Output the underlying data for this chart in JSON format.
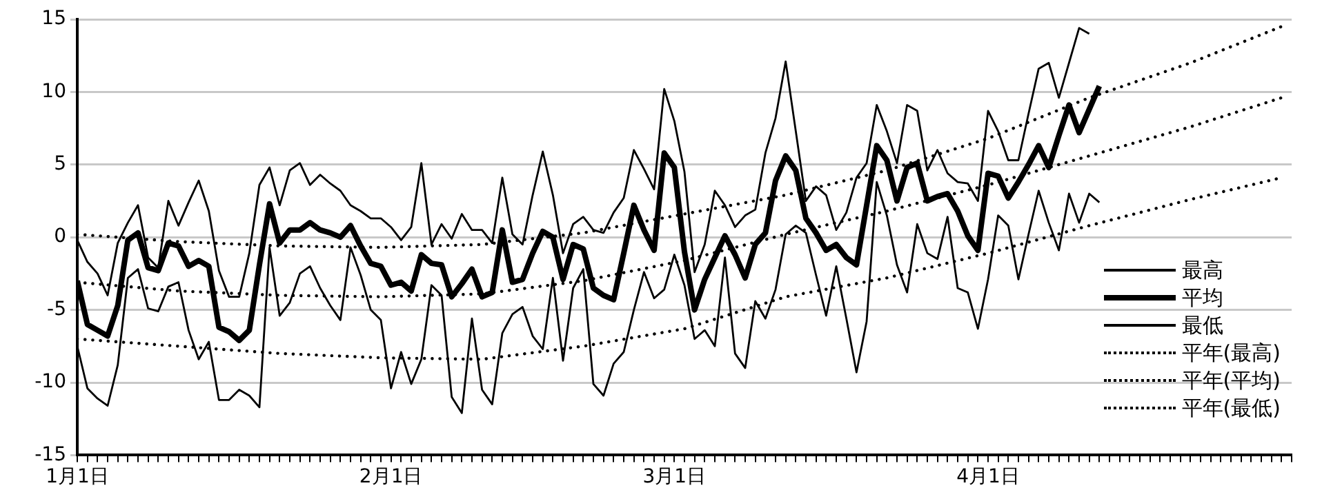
{
  "chart_data": {
    "type": "line",
    "x": [
      "--01-01",
      "--01-02",
      "--01-03",
      "--01-04",
      "--01-05",
      "--01-06",
      "--01-07",
      "--01-08",
      "--01-09",
      "--01-10",
      "--01-11",
      "--01-12",
      "--01-13",
      "--01-14",
      "--01-15",
      "--01-16",
      "--01-17",
      "--01-18",
      "--01-19",
      "--01-20",
      "--01-21",
      "--01-22",
      "--01-23",
      "--01-24",
      "--01-25",
      "--01-26",
      "--01-27",
      "--01-28",
      "--01-29",
      "--01-30",
      "--01-31",
      "--02-01",
      "--02-02",
      "--02-03",
      "--02-04",
      "--02-05",
      "--02-06",
      "--02-07",
      "--02-08",
      "--02-09",
      "--02-10",
      "--02-11",
      "--02-12",
      "--02-13",
      "--02-14",
      "--02-15",
      "--02-16",
      "--02-17",
      "--02-18",
      "--02-19",
      "--02-20",
      "--02-21",
      "--02-22",
      "--02-23",
      "--02-24",
      "--02-25",
      "--02-26",
      "--02-27",
      "--02-28",
      "--03-01",
      "--03-02",
      "--03-03",
      "--03-04",
      "--03-05",
      "--03-06",
      "--03-07",
      "--03-08",
      "--03-09",
      "--03-10",
      "--03-11",
      "--03-12",
      "--03-13",
      "--03-14",
      "--03-15",
      "--03-16",
      "--03-17",
      "--03-18",
      "--03-19",
      "--03-20",
      "--03-21",
      "--03-22",
      "--03-23",
      "--03-24",
      "--03-25",
      "--03-26",
      "--03-27",
      "--03-28",
      "--03-29",
      "--03-30",
      "--03-31",
      "--04-01",
      "--04-02",
      "--04-03",
      "--04-04",
      "--04-05",
      "--04-06",
      "--04-07",
      "--04-08",
      "--04-09",
      "--04-10",
      "--04-11",
      "--04-12"
    ],
    "series": [
      {
        "name": "最高",
        "color": "#000000",
        "line_style": "solid",
        "values": [
          -0.2,
          -1.7,
          -2.5,
          -4.0,
          -0.4,
          1.0,
          2.2,
          -1.4,
          -2.1,
          2.5,
          0.8,
          2.4,
          3.9,
          1.8,
          -2.3,
          -4.1,
          -4.1,
          -1.1,
          3.6,
          4.8,
          2.2,
          4.6,
          5.1,
          3.6,
          4.3,
          3.7,
          3.2,
          2.2,
          1.8,
          1.3,
          1.3,
          0.7,
          -0.2,
          0.7,
          5.1,
          -0.5,
          0.9,
          -0.1,
          1.6,
          0.5,
          0.5,
          -0.4,
          4.1,
          0.2,
          -0.5,
          2.9,
          5.9,
          2.9,
          -1.1,
          0.9,
          1.4,
          0.5,
          0.3,
          1.7,
          2.7,
          6.0,
          4.7,
          3.3,
          10.2,
          8.0,
          4.5,
          -2.4,
          -0.5,
          3.2,
          2.2,
          0.7,
          1.5,
          1.9,
          5.8,
          8.2,
          12.1,
          7.3,
          2.5,
          3.5,
          2.9,
          0.5,
          1.7,
          4.1,
          5.1,
          9.1,
          7.3,
          5.1,
          9.1,
          8.7,
          4.6,
          6.0,
          4.4,
          3.8,
          3.7,
          2.5,
          8.7,
          7.3,
          5.3,
          5.3,
          8.5,
          11.6,
          12.0,
          9.6,
          12.0,
          14.4,
          14.0,
          null
        ]
      },
      {
        "name": "平均",
        "color": "#000000",
        "line_style": "solid",
        "values": [
          -3.0,
          -6.0,
          -6.4,
          -6.8,
          -4.7,
          -0.2,
          0.3,
          -2.1,
          -2.3,
          -0.4,
          -0.6,
          -2.0,
          -1.6,
          -2.0,
          -6.2,
          -6.5,
          -7.1,
          -6.4,
          -1.9,
          2.3,
          -0.4,
          0.5,
          0.5,
          1.0,
          0.5,
          0.3,
          0.0,
          0.8,
          -0.6,
          -1.8,
          -2.0,
          -3.3,
          -3.1,
          -3.7,
          -1.2,
          -1.8,
          -1.9,
          -4.1,
          -3.2,
          -2.2,
          -4.1,
          -3.8,
          0.5,
          -3.1,
          -2.9,
          -1.1,
          0.4,
          0.0,
          -2.9,
          -0.5,
          -0.8,
          -3.5,
          -4.0,
          -4.3,
          -1.1,
          2.2,
          0.5,
          -0.9,
          5.8,
          4.8,
          -1.0,
          -5.0,
          -2.9,
          -1.4,
          0.1,
          -1.2,
          -2.8,
          -0.5,
          0.3,
          3.9,
          5.6,
          4.6,
          1.3,
          0.3,
          -0.9,
          -0.5,
          -1.4,
          -1.9,
          2.2,
          6.3,
          5.3,
          2.5,
          4.8,
          5.1,
          2.5,
          2.8,
          3.0,
          1.8,
          0.1,
          -0.9,
          4.4,
          4.2,
          2.7,
          3.8,
          5.0,
          6.3,
          4.8,
          7.0,
          9.1,
          7.2,
          8.8,
          10.4
        ]
      },
      {
        "name": "最低",
        "color": "#000000",
        "line_style": "solid",
        "values": [
          -7.5,
          -10.4,
          -11.1,
          -11.6,
          -8.8,
          -2.8,
          -2.2,
          -4.9,
          -5.1,
          -3.4,
          -3.1,
          -6.4,
          -8.4,
          -7.2,
          -11.2,
          -11.2,
          -10.5,
          -10.9,
          -11.7,
          -0.7,
          -5.4,
          -4.5,
          -2.5,
          -2.0,
          -3.5,
          -4.7,
          -5.7,
          -0.7,
          -2.6,
          -5.0,
          -5.7,
          -10.4,
          -7.9,
          -10.1,
          -8.4,
          -3.3,
          -4.0,
          -11.0,
          -12.1,
          -5.6,
          -10.5,
          -11.5,
          -6.6,
          -5.3,
          -4.8,
          -6.8,
          -7.7,
          -2.8,
          -8.5,
          -3.5,
          -2.2,
          -10.1,
          -10.9,
          -8.7,
          -7.9,
          -5.0,
          -2.4,
          -4.2,
          -3.6,
          -1.2,
          -3.3,
          -7.0,
          -6.4,
          -7.5,
          -1.4,
          -8.0,
          -9.0,
          -4.4,
          -5.6,
          -3.6,
          0.2,
          0.8,
          0.3,
          -2.6,
          -5.4,
          -2.0,
          -5.6,
          -9.3,
          -5.8,
          3.8,
          1.5,
          -1.9,
          -3.8,
          0.9,
          -1.1,
          -1.5,
          1.4,
          -3.5,
          -3.8,
          -6.3,
          -2.9,
          1.5,
          0.8,
          -2.9,
          0.2,
          3.2,
          1.0,
          -0.9,
          3.0,
          1.0,
          3.0,
          2.4
        ]
      },
      {
        "name": "平年(最高)",
        "color": "#000000",
        "line_style": "dotted",
        "x": [
          "--01-01",
          "--01-11",
          "--01-21",
          "--01-31",
          "--02-10",
          "--02-20",
          "--03-02",
          "--03-12",
          "--03-22",
          "--04-01",
          "--04-11",
          "--04-21",
          "--04-30"
        ],
        "values": [
          0.2,
          -0.3,
          -0.6,
          -0.7,
          -0.5,
          0.3,
          1.6,
          2.9,
          4.6,
          6.8,
          9.6,
          12.0,
          14.5
        ]
      },
      {
        "name": "平年(平均)",
        "color": "#000000",
        "line_style": "dotted",
        "x": [
          "--01-01",
          "--01-11",
          "--01-21",
          "--01-31",
          "--02-10",
          "--02-20",
          "--03-02",
          "--03-12",
          "--03-22",
          "--04-01",
          "--04-11",
          "--04-21",
          "--04-30"
        ],
        "values": [
          -3.1,
          -3.7,
          -4.0,
          -4.1,
          -3.9,
          -3.0,
          -1.6,
          0.2,
          1.8,
          3.6,
          5.6,
          7.6,
          9.6
        ]
      },
      {
        "name": "平年(最低)",
        "color": "#000000",
        "line_style": "dotted",
        "x": [
          "--01-01",
          "--01-11",
          "--01-21",
          "--01-31",
          "--02-10",
          "--02-20",
          "--03-02",
          "--03-12",
          "--03-22",
          "--04-01",
          "--04-11",
          "--04-21",
          "--04-30"
        ],
        "values": [
          -7.0,
          -7.5,
          -8.0,
          -8.3,
          -8.4,
          -7.5,
          -6.3,
          -4.1,
          -2.8,
          -1.1,
          0.8,
          2.6,
          4.1
        ]
      }
    ],
    "xlim": [
      "--01-01",
      "--05-01"
    ],
    "xticks": [
      {
        "value": "--01-01",
        "label": "1月1日"
      },
      {
        "value": "--01-02",
        "label": null
      },
      {
        "value": "--01-03",
        "label": null
      },
      {
        "value": "--01-04",
        "label": null
      },
      {
        "value": "--01-05",
        "label": null
      },
      {
        "value": "--01-06",
        "label": null
      },
      {
        "value": "--01-07",
        "label": null
      },
      {
        "value": "--01-08",
        "label": null
      },
      {
        "value": "--01-09",
        "label": null
      },
      {
        "value": "--01-10",
        "label": null
      },
      {
        "value": "--01-11",
        "label": null
      },
      {
        "value": "--01-12",
        "label": null
      },
      {
        "value": "--01-13",
        "label": null
      },
      {
        "value": "--01-14",
        "label": null
      },
      {
        "value": "--01-15",
        "label": null
      },
      {
        "value": "--01-16",
        "label": null
      },
      {
        "value": "--01-17",
        "label": null
      },
      {
        "value": "--01-18",
        "label": null
      },
      {
        "value": "--01-19",
        "label": null
      },
      {
        "value": "--01-20",
        "label": null
      },
      {
        "value": "--01-21",
        "label": null
      },
      {
        "value": "--01-22",
        "label": null
      },
      {
        "value": "--01-23",
        "label": null
      },
      {
        "value": "--01-24",
        "label": null
      },
      {
        "value": "--01-25",
        "label": null
      },
      {
        "value": "--01-26",
        "label": null
      },
      {
        "value": "--01-27",
        "label": null
      },
      {
        "value": "--01-28",
        "label": null
      },
      {
        "value": "--01-29",
        "label": null
      },
      {
        "value": "--01-30",
        "label": null
      },
      {
        "value": "--01-31",
        "label": null
      },
      {
        "value": "--02-01",
        "label": "2月1日"
      },
      {
        "value": "--02-02",
        "label": null
      },
      {
        "value": "--02-03",
        "label": null
      },
      {
        "value": "--02-04",
        "label": null
      },
      {
        "value": "--02-05",
        "label": null
      },
      {
        "value": "--02-06",
        "label": null
      },
      {
        "value": "--02-07",
        "label": null
      },
      {
        "value": "--02-08",
        "label": null
      },
      {
        "value": "--02-09",
        "label": null
      },
      {
        "value": "--02-10",
        "label": null
      },
      {
        "value": "--02-11",
        "label": null
      },
      {
        "value": "--02-12",
        "label": null
      },
      {
        "value": "--02-13",
        "label": null
      },
      {
        "value": "--02-14",
        "label": null
      },
      {
        "value": "--02-15",
        "label": null
      },
      {
        "value": "--02-16",
        "label": null
      },
      {
        "value": "--02-17",
        "label": null
      },
      {
        "value": "--02-18",
        "label": null
      },
      {
        "value": "--02-19",
        "label": null
      },
      {
        "value": "--02-20",
        "label": null
      },
      {
        "value": "--02-21",
        "label": null
      },
      {
        "value": "--02-22",
        "label": null
      },
      {
        "value": "--02-23",
        "label": null
      },
      {
        "value": "--02-24",
        "label": null
      },
      {
        "value": "--02-25",
        "label": null
      },
      {
        "value": "--02-26",
        "label": null
      },
      {
        "value": "--02-27",
        "label": null
      },
      {
        "value": "--02-28",
        "label": null
      },
      {
        "value": "--03-01",
        "label": "3月1日"
      },
      {
        "value": "--03-02",
        "label": null
      },
      {
        "value": "--03-03",
        "label": null
      },
      {
        "value": "--03-04",
        "label": null
      },
      {
        "value": "--03-05",
        "label": null
      },
      {
        "value": "--03-06",
        "label": null
      },
      {
        "value": "--03-07",
        "label": null
      },
      {
        "value": "--03-08",
        "label": null
      },
      {
        "value": "--03-09",
        "label": null
      },
      {
        "value": "--03-10",
        "label": null
      },
      {
        "value": "--03-11",
        "label": null
      },
      {
        "value": "--03-12",
        "label": null
      },
      {
        "value": "--03-13",
        "label": null
      },
      {
        "value": "--03-14",
        "label": null
      },
      {
        "value": "--03-15",
        "label": null
      },
      {
        "value": "--03-16",
        "label": null
      },
      {
        "value": "--03-17",
        "label": null
      },
      {
        "value": "--03-18",
        "label": null
      },
      {
        "value": "--03-19",
        "label": null
      },
      {
        "value": "--03-20",
        "label": null
      },
      {
        "value": "--03-21",
        "label": null
      },
      {
        "value": "--03-22",
        "label": null
      },
      {
        "value": "--03-23",
        "label": null
      },
      {
        "value": "--03-24",
        "label": null
      },
      {
        "value": "--03-25",
        "label": null
      },
      {
        "value": "--03-26",
        "label": null
      },
      {
        "value": "--03-27",
        "label": null
      },
      {
        "value": "--03-28",
        "label": null
      },
      {
        "value": "--03-29",
        "label": null
      },
      {
        "value": "--03-30",
        "label": null
      },
      {
        "value": "--03-31",
        "label": null
      },
      {
        "value": "--04-01",
        "label": "4月1日"
      },
      {
        "value": "--04-02",
        "label": null
      },
      {
        "value": "--04-03",
        "label": null
      },
      {
        "value": "--04-04",
        "label": null
      },
      {
        "value": "--04-05",
        "label": null
      },
      {
        "value": "--04-06",
        "label": null
      },
      {
        "value": "--04-07",
        "label": null
      },
      {
        "value": "--04-08",
        "label": null
      },
      {
        "value": "--04-09",
        "label": null
      },
      {
        "value": "--04-10",
        "label": null
      },
      {
        "value": "--04-11",
        "label": null
      },
      {
        "value": "--04-12",
        "label": null
      },
      {
        "value": "--04-13",
        "label": null
      },
      {
        "value": "--04-14",
        "label": null
      },
      {
        "value": "--04-15",
        "label": null
      },
      {
        "value": "--04-16",
        "label": null
      },
      {
        "value": "--04-17",
        "label": null
      },
      {
        "value": "--04-18",
        "label": null
      },
      {
        "value": "--04-19",
        "label": null
      },
      {
        "value": "--04-20",
        "label": null
      },
      {
        "value": "--04-21",
        "label": null
      },
      {
        "value": "--04-22",
        "label": null
      },
      {
        "value": "--04-23",
        "label": null
      },
      {
        "value": "--04-24",
        "label": null
      },
      {
        "value": "--04-25",
        "label": null
      },
      {
        "value": "--04-26",
        "label": null
      },
      {
        "value": "--04-27",
        "label": null
      },
      {
        "value": "--04-28",
        "label": null
      },
      {
        "value": "--04-29",
        "label": null
      },
      {
        "value": "--04-30",
        "label": null
      },
      {
        "value": "--05-01",
        "label": null
      }
    ],
    "ylim": [
      -15,
      15
    ],
    "yticks": [
      -15,
      -10,
      -5,
      0,
      5,
      10,
      15
    ],
    "grid": "y",
    "legend": "bottom right"
  }
}
